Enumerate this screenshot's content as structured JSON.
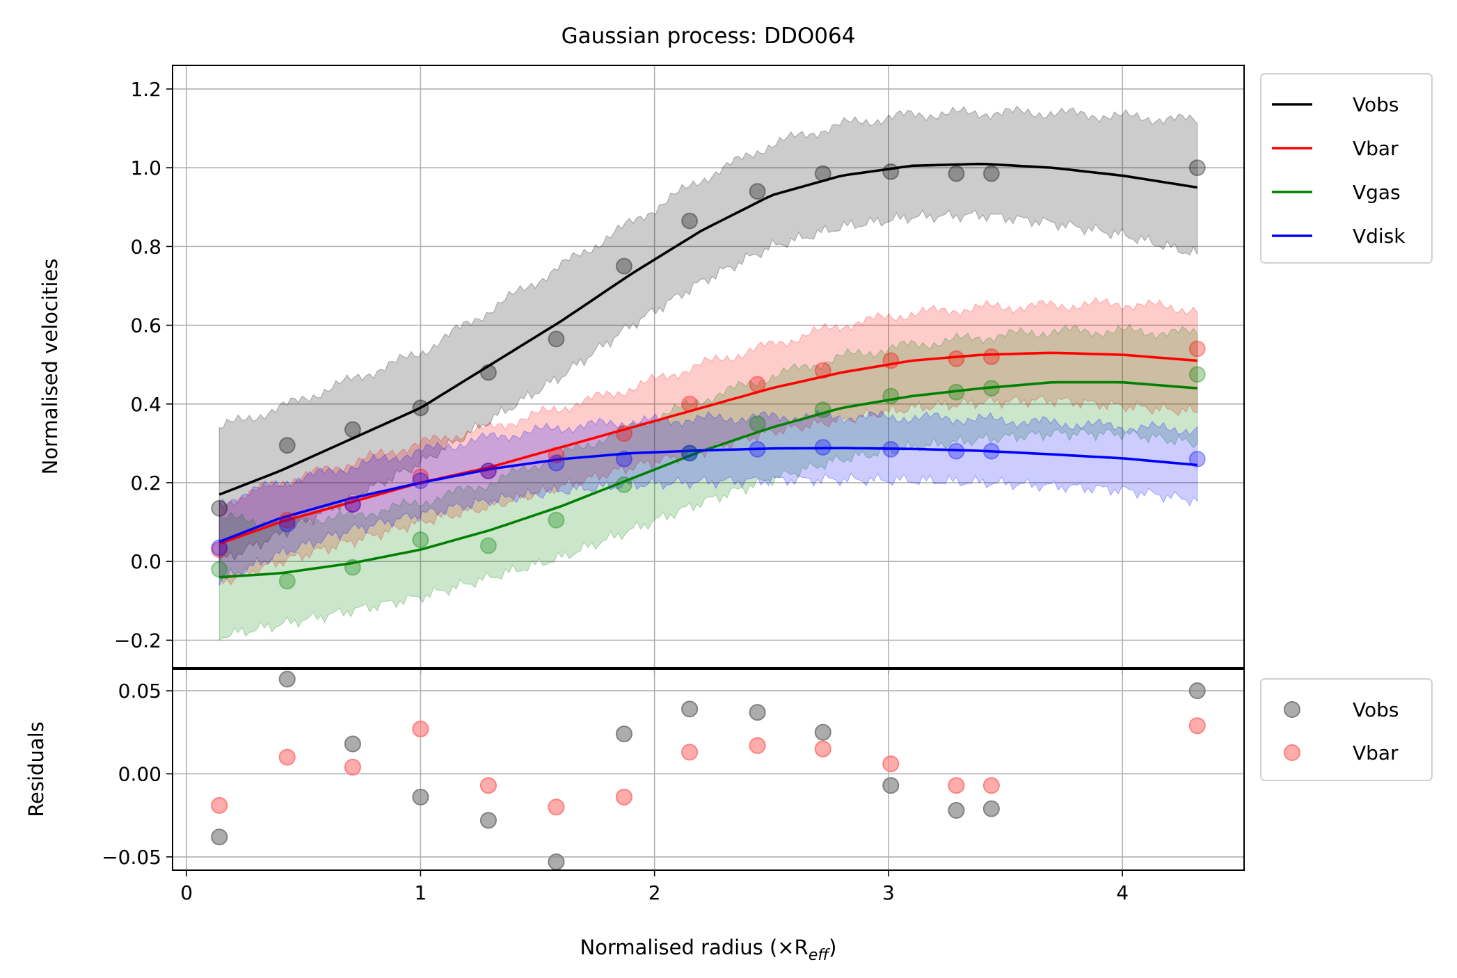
{
  "chart_data": [
    {
      "type": "line",
      "panel": "main",
      "title": "Gaussian process: DDO064",
      "ylabel": "Normalised velocities",
      "xlim": [
        -0.06,
        4.52
      ],
      "ylim": [
        -0.27,
        1.26
      ],
      "grid": true,
      "legend": {
        "placement": "outside-top-right",
        "entries": [
          "Vobs",
          "Vbar",
          "Vgas",
          "Vdisk"
        ]
      },
      "xticks": [
        0,
        1,
        2,
        3,
        4
      ],
      "yticks": [
        -0.2,
        0.0,
        0.2,
        0.4,
        0.6,
        0.8,
        1.0,
        1.2
      ],
      "ytick_labels": [
        "−0.2",
        "0.0",
        "0.2",
        "0.4",
        "0.6",
        "0.8",
        "1.0",
        "1.2"
      ],
      "series": [
        {
          "name": "Vobs",
          "color": "#000000",
          "points_x": [
            0.14,
            0.43,
            0.71,
            1.0,
            1.29,
            1.58,
            1.87,
            2.15,
            2.44,
            2.72,
            3.01,
            3.29,
            3.44,
            4.32
          ],
          "points_y": [
            0.135,
            0.295,
            0.335,
            0.39,
            0.48,
            0.565,
            0.75,
            0.865,
            0.94,
            0.985,
            0.99,
            0.985,
            0.985,
            1.0
          ],
          "fit_x": [
            0.14,
            0.4,
            0.7,
            1.0,
            1.3,
            1.6,
            1.9,
            2.2,
            2.5,
            2.8,
            3.1,
            3.4,
            3.7,
            4.0,
            4.32
          ],
          "fit_y": [
            0.17,
            0.23,
            0.31,
            0.39,
            0.5,
            0.61,
            0.73,
            0.84,
            0.93,
            0.98,
            1.005,
            1.01,
            1.0,
            0.98,
            0.95
          ],
          "band_halfwidth": [
            0.17,
            0.16,
            0.15,
            0.14,
            0.14,
            0.14,
            0.13,
            0.13,
            0.13,
            0.13,
            0.13,
            0.13,
            0.14,
            0.15,
            0.17
          ]
        },
        {
          "name": "Vbar",
          "color": "#ff0000",
          "points_x": [
            0.14,
            0.43,
            0.71,
            1.0,
            1.29,
            1.58,
            1.87,
            2.15,
            2.44,
            2.72,
            3.01,
            3.29,
            3.44,
            4.32
          ],
          "points_y": [
            0.03,
            0.105,
            0.145,
            0.215,
            0.23,
            0.27,
            0.325,
            0.4,
            0.45,
            0.485,
            0.51,
            0.515,
            0.52,
            0.54
          ],
          "fit_x": [
            0.14,
            0.4,
            0.7,
            1.0,
            1.3,
            1.6,
            1.9,
            2.2,
            2.5,
            2.8,
            3.1,
            3.4,
            3.7,
            4.0,
            4.32
          ],
          "fit_y": [
            0.045,
            0.1,
            0.15,
            0.2,
            0.24,
            0.29,
            0.34,
            0.39,
            0.44,
            0.48,
            0.51,
            0.525,
            0.53,
            0.525,
            0.51
          ],
          "band_halfwidth": [
            0.1,
            0.1,
            0.1,
            0.1,
            0.1,
            0.1,
            0.1,
            0.11,
            0.11,
            0.12,
            0.12,
            0.12,
            0.12,
            0.13,
            0.13
          ]
        },
        {
          "name": "Vgas",
          "color": "#008000",
          "points_x": [
            0.14,
            0.43,
            0.71,
            1.0,
            1.29,
            1.58,
            1.87,
            2.15,
            2.44,
            2.72,
            3.01,
            3.29,
            3.44,
            4.32
          ],
          "points_y": [
            -0.02,
            -0.05,
            -0.015,
            0.055,
            0.04,
            0.105,
            0.195,
            0.275,
            0.35,
            0.385,
            0.42,
            0.43,
            0.44,
            0.475
          ],
          "fit_x": [
            0.14,
            0.4,
            0.7,
            1.0,
            1.3,
            1.6,
            1.9,
            2.2,
            2.5,
            2.8,
            3.1,
            3.4,
            3.7,
            4.0,
            4.32
          ],
          "fit_y": [
            -0.04,
            -0.03,
            -0.005,
            0.03,
            0.08,
            0.14,
            0.21,
            0.28,
            0.34,
            0.39,
            0.42,
            0.44,
            0.455,
            0.455,
            0.44
          ],
          "band_halfwidth": [
            0.15,
            0.13,
            0.12,
            0.12,
            0.12,
            0.13,
            0.13,
            0.13,
            0.13,
            0.13,
            0.13,
            0.13,
            0.13,
            0.13,
            0.14
          ]
        },
        {
          "name": "Vdisk",
          "color": "#0000ff",
          "points_x": [
            0.14,
            0.43,
            0.71,
            1.0,
            1.29,
            1.58,
            1.87,
            2.15,
            2.44,
            2.72,
            3.01,
            3.29,
            3.44,
            4.32
          ],
          "points_y": [
            0.035,
            0.095,
            0.145,
            0.205,
            0.23,
            0.25,
            0.26,
            0.275,
            0.285,
            0.29,
            0.285,
            0.28,
            0.28,
            0.26
          ],
          "fit_x": [
            0.14,
            0.4,
            0.7,
            1.0,
            1.3,
            1.6,
            1.9,
            2.2,
            2.5,
            2.8,
            3.1,
            3.4,
            3.7,
            4.0,
            4.32
          ],
          "fit_y": [
            0.05,
            0.11,
            0.16,
            0.2,
            0.235,
            0.26,
            0.275,
            0.282,
            0.287,
            0.288,
            0.286,
            0.281,
            0.272,
            0.262,
            0.245
          ],
          "band_halfwidth": [
            0.1,
            0.09,
            0.08,
            0.08,
            0.08,
            0.08,
            0.08,
            0.08,
            0.08,
            0.08,
            0.08,
            0.08,
            0.08,
            0.08,
            0.09
          ]
        }
      ]
    },
    {
      "type": "scatter",
      "panel": "residuals",
      "xlabel": "Normalised radius (×R",
      "xlabel_sub": "eff",
      "xlabel_end": ")",
      "ylabel": "Residuals",
      "xlim": [
        -0.06,
        4.52
      ],
      "ylim": [
        -0.058,
        0.063
      ],
      "grid": true,
      "legend": {
        "placement": "outside-right",
        "entries": [
          "Vobs",
          "Vbar"
        ]
      },
      "xticks": [
        0,
        1,
        2,
        3,
        4
      ],
      "xtick_labels": [
        "0",
        "1",
        "2",
        "3",
        "4"
      ],
      "yticks": [
        -0.05,
        0.0,
        0.05
      ],
      "ytick_labels": [
        "−0.05",
        "0.00",
        "0.05"
      ],
      "series": [
        {
          "name": "Vobs",
          "color": "#808080",
          "x": [
            0.14,
            0.43,
            0.71,
            1.0,
            1.29,
            1.58,
            1.87,
            2.15,
            2.44,
            2.72,
            3.01,
            3.29,
            3.44,
            4.32
          ],
          "y": [
            -0.038,
            0.057,
            0.018,
            -0.014,
            -0.028,
            -0.053,
            0.024,
            0.039,
            0.037,
            0.025,
            -0.007,
            -0.022,
            -0.021,
            0.05
          ]
        },
        {
          "name": "Vbar",
          "color": "#ff7f7f",
          "x": [
            0.14,
            0.43,
            0.71,
            1.0,
            1.29,
            1.58,
            1.87,
            2.15,
            2.44,
            2.72,
            3.01,
            3.29,
            3.44,
            4.32
          ],
          "y": [
            -0.019,
            0.01,
            0.004,
            0.027,
            -0.007,
            -0.02,
            -0.014,
            0.013,
            0.017,
            0.015,
            0.006,
            -0.007,
            -0.007,
            0.029
          ]
        }
      ]
    }
  ]
}
